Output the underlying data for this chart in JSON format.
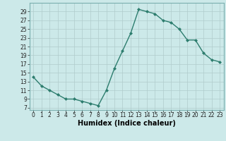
{
  "x": [
    0,
    1,
    2,
    3,
    4,
    5,
    6,
    7,
    8,
    9,
    10,
    11,
    12,
    13,
    14,
    15,
    16,
    17,
    18,
    19,
    20,
    21,
    22,
    23
  ],
  "y": [
    14,
    12,
    11,
    10,
    9,
    9,
    8.5,
    8,
    7.5,
    11,
    16,
    20,
    24,
    29.5,
    29,
    28.5,
    27,
    26.5,
    25,
    22.5,
    22.5,
    19.5,
    18,
    17.5
  ],
  "line_color": "#2d7d6e",
  "marker": "D",
  "marker_size": 2.0,
  "line_width": 1.0,
  "bg_color": "#cce9e9",
  "grid_color": "#b0cccc",
  "xlabel": "Humidex (Indice chaleur)",
  "yticks": [
    7,
    9,
    11,
    13,
    15,
    17,
    19,
    21,
    23,
    25,
    27,
    29
  ],
  "xticks": [
    0,
    1,
    2,
    3,
    4,
    5,
    6,
    7,
    8,
    9,
    10,
    11,
    12,
    13,
    14,
    15,
    16,
    17,
    18,
    19,
    20,
    21,
    22,
    23
  ],
  "ylim": [
    6.5,
    31
  ],
  "xlim": [
    -0.5,
    23.5
  ],
  "tick_fontsize": 5.5,
  "label_fontsize": 7.0
}
